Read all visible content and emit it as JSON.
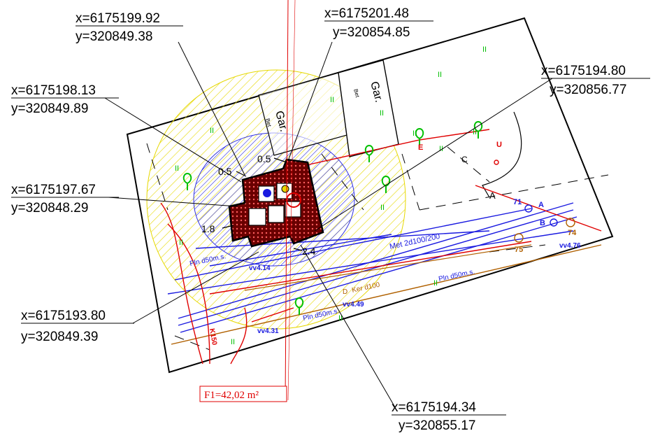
{
  "coordinates": [
    {
      "x": "x=6175199.92",
      "y": "y=320849.38"
    },
    {
      "x": "x=6175201.48",
      "y": "y=320854.85"
    },
    {
      "x": "x=6175198.13",
      "y": "y=320849.89"
    },
    {
      "x": "x=6175194.80",
      "y": "y=320856.77"
    },
    {
      "x": "x=6175197.67",
      "y": "y=320848.29"
    },
    {
      "x": "x=6175193.80",
      "y": "y=320849.39"
    },
    {
      "x": "x=6175194.34",
      "y": "y=320855.17"
    }
  ],
  "area_label": "F1=42,02 m²",
  "dimensions": {
    "d1": "0.5",
    "d2": "0.5",
    "d3": "1.8",
    "d4": "2.4"
  },
  "garage_labels": {
    "gar1": "Gar.",
    "bet1": "Bet",
    "gar2": "Gar.",
    "bet2": "Bet"
  },
  "utility_labels": {
    "met": "Met 2d100/200",
    "pln1": "Pln d50m.s.",
    "pln2": "Pln d50m.s.",
    "pln3": "Pln d50m.s.",
    "ker": "Ker d100",
    "vv1": "vv4.14",
    "vv2": "vv4.49",
    "vv3": "vv4.31",
    "vv4": "vv4.76",
    "d_label": "D",
    "k_label": "K150"
  },
  "point_labels": {
    "p71": "71",
    "p74": "74",
    "p75": "75",
    "a1": "A",
    "a2": "A",
    "b1": "B",
    "c": "C",
    "u": "U",
    "e": "E"
  },
  "colors": {
    "red": "#e00000",
    "blue": "#1a1ae0",
    "yellow": "#e6d800",
    "green": "#00c000",
    "brown": "#b06000"
  }
}
